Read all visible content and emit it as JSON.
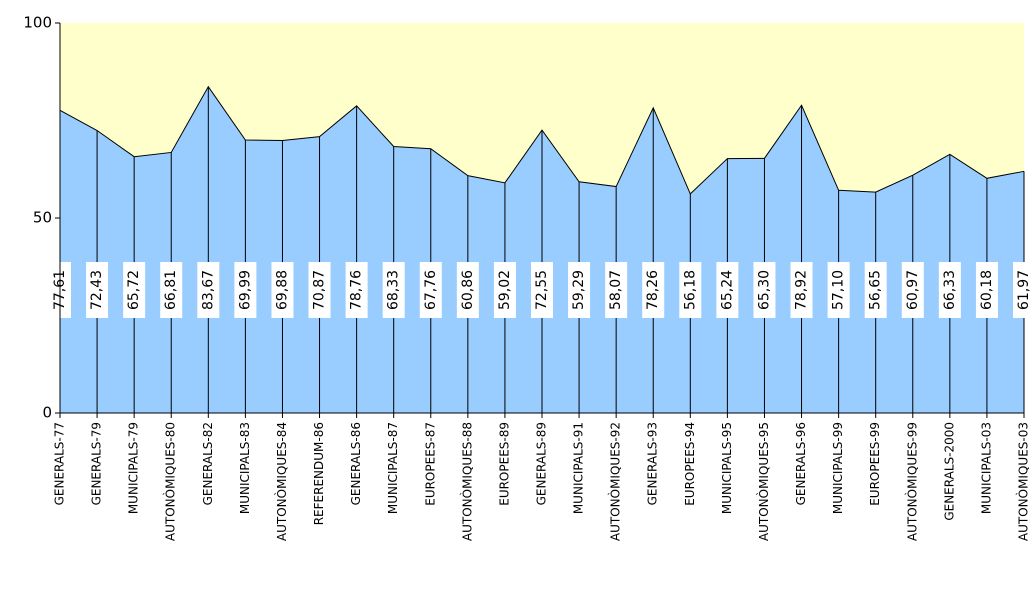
{
  "chart_data": {
    "type": "area",
    "categories": [
      "GENERALS-77",
      "GENERALS-79",
      "MUNICIPALS-79",
      "AUTONÒMIQUES-80",
      "GENERALS-82",
      "MUNICIPALS-83",
      "AUTONÒMIQUES-84",
      "REFERENDUM-86",
      "GENERALS-86",
      "MUNICIPALS-87",
      "EUROPEES-87",
      "AUTONÒMIQUES-88",
      "EUROPEES-89",
      "GENERALS-89",
      "MUNICIPALS-91",
      "AUTONÒMIQUES-92",
      "GENERALS-93",
      "EUROPEES-94",
      "MUNICIPALS-95",
      "AUTONÒMIQUES-95",
      "GENERALS-96",
      "MUNICIPALS-99",
      "EUROPEES-99",
      "AUTONÒMIQUES-99",
      "GENERALS-2000",
      "MUNICIPALS-03",
      "AUTONÒMIQUES-03"
    ],
    "values": [
      77.61,
      72.43,
      65.72,
      66.81,
      83.67,
      69.99,
      69.88,
      70.87,
      78.76,
      68.33,
      67.76,
      60.86,
      59.02,
      72.55,
      59.29,
      58.07,
      78.26,
      56.18,
      65.24,
      65.3,
      78.92,
      57.1,
      56.65,
      60.97,
      66.33,
      60.18,
      61.97
    ],
    "value_labels": [
      "77,61",
      "72,43",
      "65,72",
      "66,81",
      "83,67",
      "69,99",
      "69,88",
      "70,87",
      "78,76",
      "68,33",
      "67,76",
      "60,86",
      "59,02",
      "72,55",
      "59,29",
      "58,07",
      "78,26",
      "56,18",
      "65,24",
      "65,30",
      "78,92",
      "57,10",
      "56,65",
      "60,97",
      "66,33",
      "60,18",
      "61,97"
    ],
    "color": "#99ccff",
    "background_color": "#ffffcc",
    "ylim": [
      0,
      100
    ],
    "yticks": [
      0,
      50,
      100
    ]
  }
}
